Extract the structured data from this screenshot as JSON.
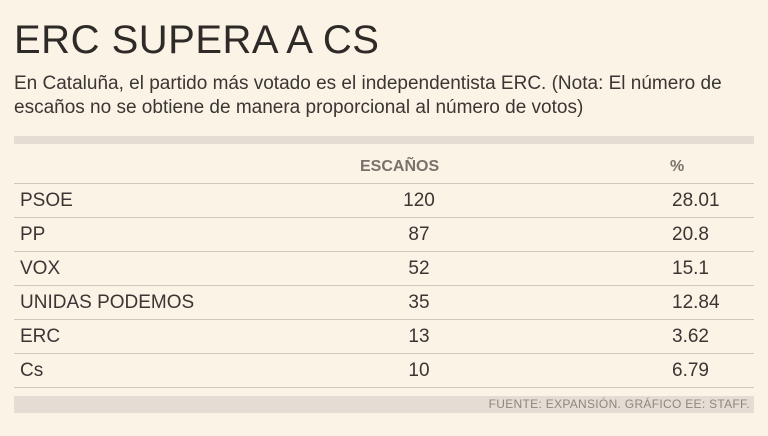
{
  "title": "ERC SUPERA A CS",
  "subtitle": "En Cataluña, el partido más votado es el independentista ERC. (Nota: El número de escaños no se obtiene de manera proporcional al número de votos)",
  "source": "FUENTE: EXPANSIÓN. GRÁFICO EE: STAFF.",
  "chart_data": {
    "type": "table",
    "columns": [
      "",
      "ESCAÑOS",
      "%"
    ],
    "rows": [
      {
        "party": "PSOE",
        "seats": "120",
        "pct": "28.01"
      },
      {
        "party": "PP",
        "seats": "87",
        "pct": "20.8"
      },
      {
        "party": "VOX",
        "seats": "52",
        "pct": "15.1"
      },
      {
        "party": "UNIDAS PODEMOS",
        "seats": "35",
        "pct": "12.84"
      },
      {
        "party": "ERC",
        "seats": "13",
        "pct": "3.62"
      },
      {
        "party": "Cs",
        "seats": "10",
        "pct": "6.79"
      }
    ]
  }
}
